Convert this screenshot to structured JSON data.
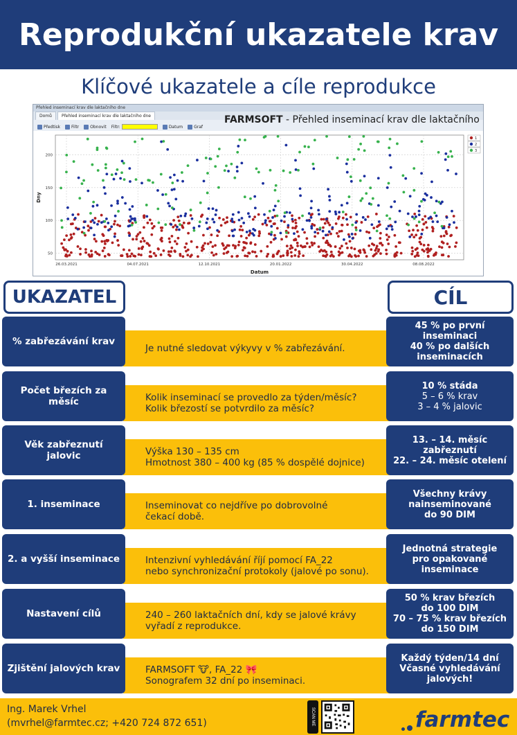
{
  "header": {
    "title": "Reprodukční ukazatele krav"
  },
  "subtitle": "Klíčové ukazatele a cíle reprodukce",
  "screenshot": {
    "window_title": "Přehled inseminací krav dle laktačního dne",
    "tabs": [
      "Domů",
      "Přehled inseminací krav dle laktačního dne"
    ],
    "toolbar": {
      "preview": "Předtisk",
      "filter": "Filtr",
      "refresh": "Obnovit",
      "filter_field": "Filtr:",
      "date": "Datum",
      "graph": "Graf"
    },
    "app_title_brand": "FARMSOFT",
    "app_title_rest": " - Přehled inseminací krav dle laktačního dne"
  },
  "chart_data": {
    "type": "scatter",
    "xlabel": "Datum",
    "ylabel": "Dny",
    "x_ticks": [
      "26.03.2021",
      "04.07.2021",
      "12.10.2021",
      "20.01.2022",
      "30.04.2022",
      "08.08.2022"
    ],
    "y_ticks": [
      50,
      100,
      150,
      200
    ],
    "ylim": [
      40,
      230
    ],
    "legend": [
      "1",
      "2",
      "3"
    ],
    "legend_position": "top-right",
    "series": [
      {
        "name": "1",
        "color": "#b02020",
        "y_range": [
          45,
          110
        ]
      },
      {
        "name": "2",
        "color": "#1a2f9e",
        "y_range": [
          70,
          210
        ]
      },
      {
        "name": "3",
        "color": "#37b24d",
        "y_range": [
          80,
          230
        ]
      }
    ]
  },
  "labels": {
    "left": "UKAZATEL",
    "right": "CÍL"
  },
  "rows": [
    {
      "indicator": "% zabřezávání krav",
      "desc": [
        "Je nutné sledovat výkyvy v % zabřezávání."
      ],
      "goal_bold": [
        "45 % po první",
        "inseminaci",
        "40 % po dalších",
        "inseminacích"
      ],
      "goal_normal": []
    },
    {
      "indicator": "Počet březích za měsíc",
      "desc": [
        "Kolik inseminací se provedlo za týden/měsíc?",
        "Kolik březostí se potvrdilo za měsíc?"
      ],
      "goal_bold": [
        "10 % stáda"
      ],
      "goal_normal": [
        "5 – 6 % krav",
        "3 – 4 % jalovic"
      ]
    },
    {
      "indicator": "Věk zabřeznutí jalovic",
      "desc": [
        "Výška 130 – 135 cm",
        "Hmotnost 380 – 400 kg (85 % dospělé dojnice)"
      ],
      "goal_bold": [
        "13. – 14. měsíc",
        "zabřeznutí",
        "22. – 24. měsíc otelení"
      ],
      "goal_normal": []
    },
    {
      "indicator": "1. inseminace",
      "desc": [
        "Inseminovat co nejdříve po dobrovolné",
        "čekací době."
      ],
      "goal_bold": [
        "Všechny krávy",
        "nainseminované",
        "do 90 DIM"
      ],
      "goal_normal": []
    },
    {
      "indicator": "2. a vyšší inseminace",
      "desc": [
        "Intenzivní vyhledávání říjí pomocí FA_22",
        "nebo synchronizační protokoly (jalové po sonu)."
      ],
      "goal_bold": [
        "Jednotná strategie",
        "pro opakované",
        "inseminace"
      ],
      "goal_normal": []
    },
    {
      "indicator": "Nastavení cílů",
      "desc": [
        "240 – 260 laktačních dní, kdy se jalové krávy",
        "vyřadí z reprodukce."
      ],
      "goal_bold": [
        "50 % krav březích",
        "do 100 DIM",
        "70 – 75 % krav březích",
        "do 150 DIM"
      ],
      "goal_normal": []
    },
    {
      "indicator": "Zjištění jalových krav",
      "desc": [
        "FARMSOFT 🐮, FA_22 🎀",
        "Sonografem 32 dní po inseminaci."
      ],
      "goal_bold": [
        "Každý týden/14 dní",
        "Včasné vyhledávání",
        "jalových!"
      ],
      "goal_normal": []
    }
  ],
  "footer": {
    "author": "Ing. Marek Vrhel",
    "contact": "(mvrhel@farmtec.cz; +420 724 872 651)",
    "scan_label": "SCAN ME",
    "logo": "farmtec",
    "brand_color": "#1f3d7a",
    "accent_color": "#fbbf0a"
  }
}
